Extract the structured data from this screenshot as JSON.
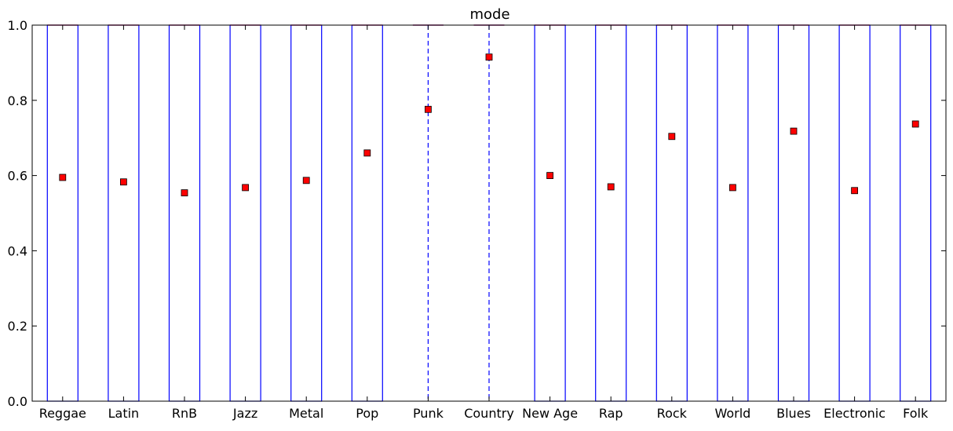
{
  "chart_data": {
    "type": "box",
    "title": "mode",
    "xlabel": "",
    "ylabel": "",
    "ylim": [
      0.0,
      1.0
    ],
    "yticks": [
      "0.0",
      "0.2",
      "0.4",
      "0.6",
      "0.8",
      "1.0"
    ],
    "grid": false,
    "categories": [
      "Reggae",
      "Latin",
      "RnB",
      "Jazz",
      "Metal",
      "Pop",
      "Punk",
      "Country",
      "New Age",
      "Rap",
      "Rock",
      "World",
      "Blues",
      "Electronic",
      "Folk"
    ],
    "boxes": [
      {
        "q1": 0,
        "median": 1,
        "q3": 1,
        "whisker_low": 0,
        "whisker_high": 1
      },
      {
        "q1": 0,
        "median": 1,
        "q3": 1,
        "whisker_low": 0,
        "whisker_high": 1
      },
      {
        "q1": 0,
        "median": 1,
        "q3": 1,
        "whisker_low": 0,
        "whisker_high": 1
      },
      {
        "q1": 0,
        "median": 1,
        "q3": 1,
        "whisker_low": 0,
        "whisker_high": 1
      },
      {
        "q1": 0,
        "median": 1,
        "q3": 1,
        "whisker_low": 0,
        "whisker_high": 1
      },
      {
        "q1": 0,
        "median": 1,
        "q3": 1,
        "whisker_low": 0,
        "whisker_high": 1
      },
      {
        "q1": 1,
        "median": 1,
        "q3": 1,
        "whisker_low": 0,
        "whisker_high": 1
      },
      {
        "q1": 1,
        "median": 1,
        "q3": 1,
        "whisker_low": 0,
        "whisker_high": 1
      },
      {
        "q1": 0,
        "median": 1,
        "q3": 1,
        "whisker_low": 0,
        "whisker_high": 1
      },
      {
        "q1": 0,
        "median": 1,
        "q3": 1,
        "whisker_low": 0,
        "whisker_high": 1
      },
      {
        "q1": 0,
        "median": 1,
        "q3": 1,
        "whisker_low": 0,
        "whisker_high": 1
      },
      {
        "q1": 0,
        "median": 1,
        "q3": 1,
        "whisker_low": 0,
        "whisker_high": 1
      },
      {
        "q1": 0,
        "median": 1,
        "q3": 1,
        "whisker_low": 0,
        "whisker_high": 1
      },
      {
        "q1": 0,
        "median": 1,
        "q3": 1,
        "whisker_low": 0,
        "whisker_high": 1
      },
      {
        "q1": 0,
        "median": 1,
        "q3": 1,
        "whisker_low": 0,
        "whisker_high": 1
      }
    ],
    "means": [
      0.595,
      0.583,
      0.554,
      0.568,
      0.587,
      0.66,
      0.776,
      0.915,
      0.6,
      0.57,
      0.704,
      0.568,
      0.718,
      0.56,
      0.737
    ],
    "colors": {
      "box": "#0000ff",
      "median": "#ff0000",
      "mean_marker": "#ff0000",
      "axes": "#000000"
    }
  }
}
